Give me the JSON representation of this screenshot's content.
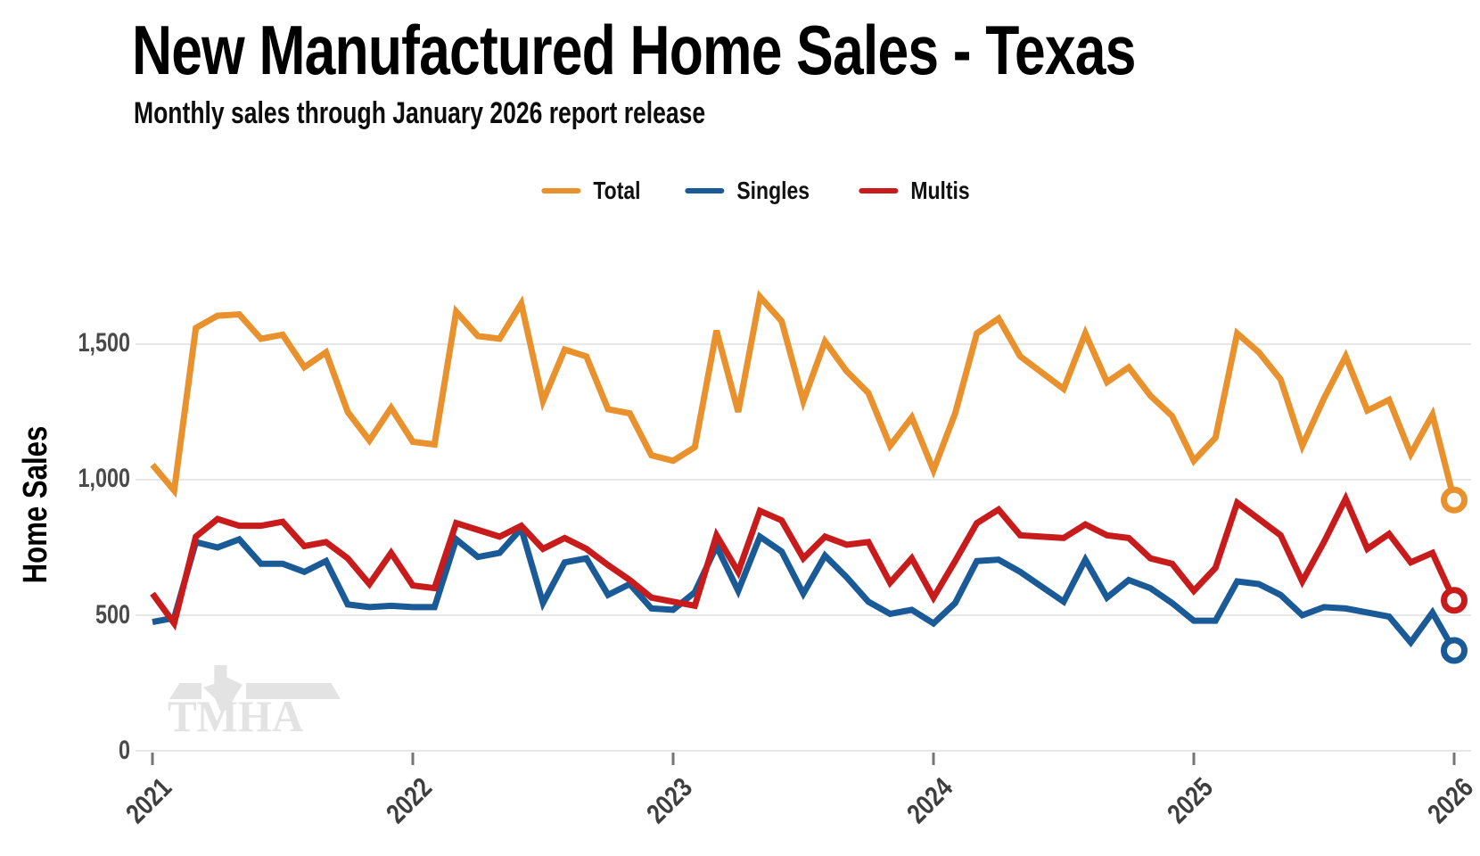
{
  "chart_data": {
    "type": "line",
    "title": "New Manufactured Home Sales - Texas",
    "subtitle": "Monthly sales through January 2026 report release",
    "ylabel": "Home Sales",
    "xlabel": "",
    "x_frequency": "monthly",
    "grid": "horizontal",
    "legend_position": "top-center",
    "ylim": [
      0,
      1750
    ],
    "x_tick_labels": [
      "2021",
      "2022",
      "2023",
      "2024",
      "2025",
      "2026"
    ],
    "y_ticks": [
      {
        "value": 0,
        "label": "0"
      },
      {
        "value": 500,
        "label": "500"
      },
      {
        "value": 1000,
        "label": "1,000"
      },
      {
        "value": 1500,
        "label": "1,500"
      }
    ],
    "x": [
      "2021-01",
      "2021-02",
      "2021-03",
      "2021-04",
      "2021-05",
      "2021-06",
      "2021-07",
      "2021-08",
      "2021-09",
      "2021-10",
      "2021-11",
      "2021-12",
      "2022-01",
      "2022-02",
      "2022-03",
      "2022-04",
      "2022-05",
      "2022-06",
      "2022-07",
      "2022-08",
      "2022-09",
      "2022-10",
      "2022-11",
      "2022-12",
      "2023-01",
      "2023-02",
      "2023-03",
      "2023-04",
      "2023-05",
      "2023-06",
      "2023-07",
      "2023-08",
      "2023-09",
      "2023-10",
      "2023-11",
      "2023-12",
      "2024-01",
      "2024-02",
      "2024-03",
      "2024-04",
      "2024-05",
      "2024-06",
      "2024-07",
      "2024-08",
      "2024-09",
      "2024-10",
      "2024-11",
      "2024-12",
      "2025-01",
      "2025-02",
      "2025-03",
      "2025-04",
      "2025-05",
      "2025-06",
      "2025-07",
      "2025-08",
      "2025-09",
      "2025-10",
      "2025-11",
      "2025-12",
      "2026-01"
    ],
    "series": [
      {
        "name": "Total",
        "color": "#E8912D",
        "end_marker": "open-circle",
        "values": [
          1055,
          960,
          1560,
          1605,
          1610,
          1520,
          1535,
          1415,
          1470,
          1250,
          1145,
          1265,
          1140,
          1130,
          1620,
          1530,
          1520,
          1650,
          1290,
          1480,
          1455,
          1260,
          1245,
          1090,
          1070,
          1120,
          1550,
          1250,
          1675,
          1585,
          1290,
          1510,
          1400,
          1320,
          1125,
          1230,
          1035,
          1245,
          1540,
          1595,
          1455,
          1395,
          1335,
          1540,
          1360,
          1415,
          1310,
          1235,
          1070,
          1155,
          1540,
          1470,
          1370,
          1125,
          1300,
          1455,
          1255,
          1295,
          1095,
          1240,
          925
        ]
      },
      {
        "name": "Singles",
        "color": "#1A5A96",
        "end_marker": "open-circle",
        "values": [
          475,
          490,
          770,
          750,
          780,
          690,
          690,
          660,
          700,
          540,
          530,
          535,
          530,
          530,
          780,
          715,
          730,
          820,
          545,
          695,
          710,
          575,
          615,
          525,
          520,
          585,
          755,
          590,
          790,
          735,
          580,
          720,
          640,
          550,
          505,
          520,
          470,
          545,
          700,
          705,
          660,
          605,
          550,
          705,
          565,
          630,
          600,
          545,
          480,
          480,
          625,
          615,
          575,
          500,
          530,
          525,
          510,
          495,
          400,
          510,
          370
        ]
      },
      {
        "name": "Multis",
        "color": "#C81B1B",
        "end_marker": "open-circle",
        "values": [
          580,
          470,
          790,
          855,
          830,
          830,
          845,
          755,
          770,
          710,
          615,
          730,
          610,
          600,
          840,
          815,
          790,
          830,
          745,
          785,
          745,
          685,
          630,
          565,
          550,
          535,
          795,
          660,
          885,
          850,
          710,
          790,
          760,
          770,
          620,
          710,
          565,
          700,
          840,
          890,
          795,
          790,
          785,
          835,
          795,
          785,
          710,
          690,
          590,
          675,
          915,
          855,
          795,
          625,
          770,
          930,
          745,
          800,
          695,
          730,
          555
        ]
      }
    ]
  },
  "watermark": {
    "text": "TMHA",
    "color": "#E3E3E3"
  },
  "style_colors": {
    "gridline": "#E7E7E7",
    "tick": "#757575"
  }
}
